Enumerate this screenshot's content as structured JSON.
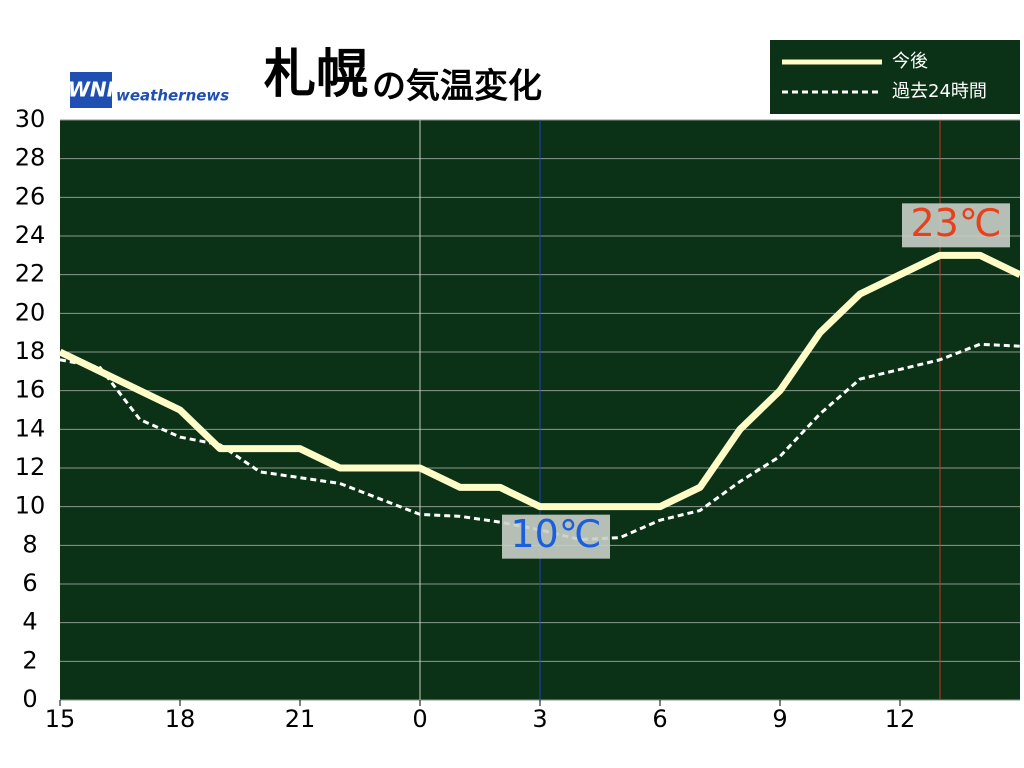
{
  "chart_data": {
    "type": "line",
    "title": "札幌",
    "subtitle": "の気温変化",
    "logo": {
      "mark": "WNI",
      "text": "weathernews"
    },
    "x": [
      0,
      1,
      2,
      3,
      4,
      5,
      6,
      7,
      8,
      9,
      10,
      11,
      12,
      13,
      14,
      15,
      16,
      17,
      18,
      19,
      20,
      21,
      22,
      23,
      24
    ],
    "xlim": [
      0,
      24
    ],
    "xticks": [
      {
        "value": 0,
        "label": "15"
      },
      {
        "value": 3,
        "label": "18"
      },
      {
        "value": 6,
        "label": "21"
      },
      {
        "value": 9,
        "label": "0"
      },
      {
        "value": 12,
        "label": "3"
      },
      {
        "value": 15,
        "label": "6"
      },
      {
        "value": 18,
        "label": "9"
      },
      {
        "value": 21,
        "label": "12"
      }
    ],
    "ylim": [
      0,
      30
    ],
    "yticks": [
      0,
      2,
      4,
      6,
      8,
      10,
      12,
      14,
      16,
      18,
      20,
      22,
      24,
      26,
      28,
      30
    ],
    "grid": true,
    "date_line": 9,
    "series": [
      {
        "name": "今後",
        "color": "#fffcc8",
        "dash": false,
        "values": [
          18,
          17,
          16,
          15,
          13,
          13,
          13,
          12,
          12,
          12,
          11,
          11,
          10,
          10,
          10,
          10,
          11,
          14,
          16,
          19,
          21,
          22,
          23,
          23,
          22
        ]
      },
      {
        "name": "過去24時間",
        "color": "#ffffff",
        "dash": true,
        "values": [
          17.6,
          17.2,
          14.5,
          13.6,
          13.2,
          11.8,
          11.5,
          11.2,
          10.4,
          9.6,
          9.5,
          9.2,
          8.8,
          8.3,
          8.4,
          9.3,
          9.8,
          11.3,
          12.6,
          14.8,
          16.6,
          17.1,
          17.6,
          18.4,
          18.3
        ]
      }
    ],
    "min_label": "10℃",
    "min_color": "#1a5fe0",
    "max_label": "23℃",
    "max_color": "#e8401c",
    "legend": "top-right"
  }
}
